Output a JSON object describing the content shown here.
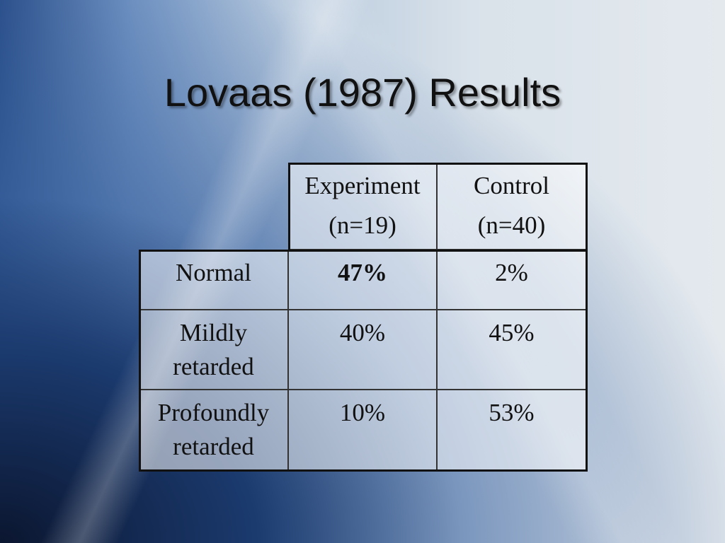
{
  "title": "Lovaas (1987) Results",
  "table": {
    "columns": [
      [
        "Experiment",
        "(n=19)"
      ],
      [
        "Control",
        "(n=40)"
      ]
    ],
    "rows": [
      {
        "label": "Normal",
        "cells": [
          "47%",
          "2%"
        ],
        "bold": [
          true,
          false
        ]
      },
      {
        "label": "Mildly retarded",
        "cells": [
          "40%",
          "45%"
        ],
        "bold": [
          false,
          false
        ]
      },
      {
        "label": "Profoundly retarded",
        "cells": [
          "10%",
          "53%"
        ],
        "bold": [
          false,
          false
        ]
      }
    ]
  }
}
